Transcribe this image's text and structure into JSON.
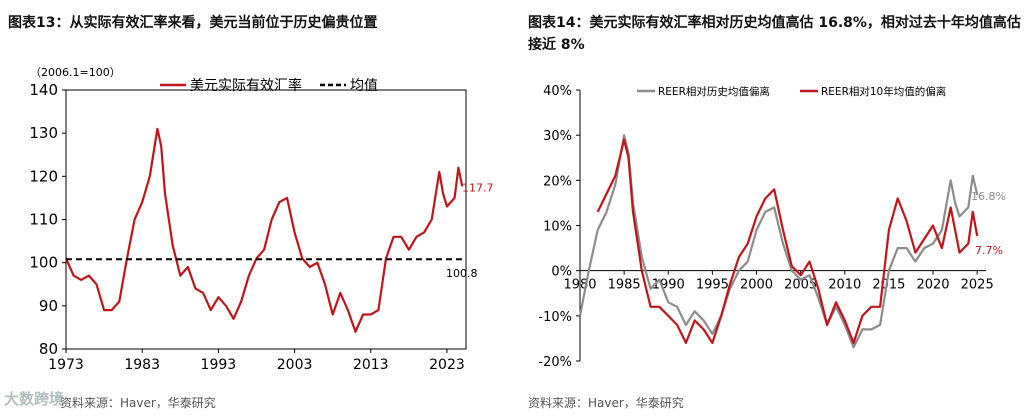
{
  "chart_data": [
    {
      "type": "line",
      "title_label": "图表13：",
      "title": "从实际有效汇率来看，美元当前位于历史偏贵位置",
      "note": "（2006.1=100）",
      "ylim": [
        80,
        140
      ],
      "yticks": [
        "140",
        "130",
        "120",
        "110",
        "100",
        "90",
        "80"
      ],
      "xlim": [
        1973,
        2025.5
      ],
      "xticks": [
        "1973",
        "1983",
        "1993",
        "2003",
        "2013",
        "2023"
      ],
      "legend": [
        "美元实际有效汇率",
        "均值"
      ],
      "series": [
        {
          "name": "美元实际有效汇率",
          "color": "#c0141b",
          "x": [
            1973,
            1973.5,
            1974,
            1975,
            1976,
            1977,
            1978,
            1979,
            1980,
            1981,
            1982,
            1983,
            1984,
            1985,
            1985.5,
            1986,
            1987,
            1988,
            1989,
            1990,
            1991,
            1992,
            1993,
            1994,
            1995,
            1996,
            1997,
            1998,
            1999,
            2000,
            2001,
            2002,
            2003,
            2004,
            2005,
            2006,
            2007,
            2008,
            2009,
            2010,
            2011,
            2012,
            2013,
            2014,
            2015,
            2016,
            2017,
            2018,
            2019,
            2020,
            2021,
            2022,
            2022.5,
            2023,
            2024,
            2024.5,
            2025
          ],
          "values": [
            101,
            99,
            97,
            96,
            97,
            95,
            89,
            89,
            91,
            101,
            110,
            114,
            120,
            131,
            127,
            116,
            104,
            97,
            99,
            94,
            93,
            89,
            92,
            90,
            87,
            91,
            97,
            101,
            103,
            110,
            114,
            115,
            107,
            101,
            99,
            100,
            95,
            88,
            93,
            89,
            84,
            88,
            88,
            89,
            101,
            106,
            106,
            103,
            106,
            107,
            110,
            121,
            116,
            113,
            115,
            122,
            117.7
          ]
        },
        {
          "name": "均值",
          "color": "#000000",
          "x": [
            1973,
            2025
          ],
          "values": [
            100.8,
            100.8
          ]
        }
      ],
      "annotations": [
        {
          "text": "117.7",
          "color": "#c0141b"
        },
        {
          "text": "100.8",
          "color": "#000000"
        }
      ],
      "source": "资料来源：Haver，华泰研究"
    },
    {
      "type": "line",
      "title_label": "图表14：",
      "title": "美元实际有效汇率相对历史均值高估 16.8%，相对过去十年均值高估接近 8%",
      "ylim": [
        -20,
        40
      ],
      "yticks": [
        "40%",
        "30%",
        "20%",
        "10%",
        "0%",
        "-10%",
        "-20%"
      ],
      "xlim": [
        1980,
        2026
      ],
      "xticks": [
        "1980",
        "1985",
        "1990",
        "1995",
        "2000",
        "2005",
        "2010",
        "2015",
        "2020",
        "2025"
      ],
      "legend": [
        "REER相对历史均值偏离",
        "REER相对10年均值的偏离"
      ],
      "series": [
        {
          "name": "REER相对历史均值偏离",
          "color": "#8c8c8c",
          "x": [
            1980,
            1981,
            1982,
            1983,
            1984,
            1985,
            1985.5,
            1986,
            1987,
            1988,
            1989,
            1990,
            1991,
            1992,
            1993,
            1994,
            1995,
            1996,
            1997,
            1998,
            1999,
            2000,
            2001,
            2002,
            2003,
            2004,
            2005,
            2006,
            2007,
            2008,
            2009,
            2010,
            2011,
            2012,
            2013,
            2014,
            2015,
            2016,
            2017,
            2018,
            2019,
            2020,
            2021,
            2022,
            2022.5,
            2023,
            2024,
            2024.5,
            2025
          ],
          "values": [
            -10,
            0,
            9,
            13,
            19,
            30,
            26,
            15,
            3,
            -4,
            -2,
            -7,
            -8,
            -12,
            -9,
            -11,
            -14,
            -10,
            -4,
            0,
            2,
            9,
            13,
            14,
            6,
            0,
            -2,
            -1,
            -6,
            -12,
            -8,
            -12,
            -17,
            -13,
            -13,
            -12,
            0,
            5,
            5,
            2,
            5,
            6,
            9,
            20,
            15,
            12,
            14,
            21,
            16.8
          ]
        },
        {
          "name": "REER相对10年均值的偏离",
          "color": "#c0141b",
          "x": [
            1982,
            1983,
            1984,
            1985,
            1985.5,
            1986,
            1987,
            1988,
            1989,
            1990,
            1991,
            1992,
            1993,
            1994,
            1995,
            1996,
            1997,
            1998,
            1999,
            2000,
            2001,
            2002,
            2003,
            2004,
            2005,
            2006,
            2007,
            2008,
            2009,
            2010,
            2011,
            2012,
            2013,
            2014,
            2015,
            2016,
            2017,
            2018,
            2019,
            2020,
            2021,
            2022,
            2022.5,
            2023,
            2024,
            2024.5,
            2025
          ],
          "values": [
            13,
            17,
            21,
            29,
            25,
            13,
            0,
            -8,
            -8,
            -10,
            -12,
            -16,
            -11,
            -13,
            -16,
            -10,
            -3,
            3,
            6,
            12,
            16,
            18,
            9,
            1,
            -1,
            2,
            -4,
            -12,
            -7,
            -11,
            -16,
            -10,
            -8,
            -8,
            9,
            16,
            11,
            4,
            7,
            10,
            5,
            14,
            9,
            4,
            6,
            13,
            7.7
          ]
        }
      ],
      "annotations": [
        {
          "text": "16.8%",
          "color": "#8c8c8c"
        },
        {
          "text": "7.7%",
          "color": "#c0141b"
        }
      ],
      "source": "资料来源：Haver，华泰研究"
    }
  ],
  "watermark": "大数跨境"
}
